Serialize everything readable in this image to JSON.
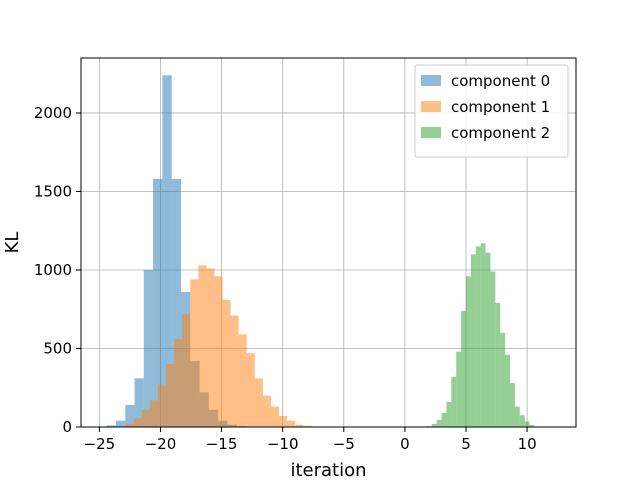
{
  "chart_data": {
    "type": "histogram",
    "xlabel": "iteration",
    "ylabel": "KL",
    "xlim": [
      -26.5,
      14.0
    ],
    "ylim": [
      0,
      2350
    ],
    "xticks": [
      -25,
      -20,
      -15,
      -10,
      -5,
      0,
      5,
      10
    ],
    "xtick_labels": [
      "−25",
      "−20",
      "−15",
      "−10",
      "−5",
      "0",
      "5",
      "10"
    ],
    "yticks": [
      0,
      500,
      1000,
      1500,
      2000
    ],
    "ytick_labels": [
      "0",
      "500",
      "1000",
      "1500",
      "2000"
    ],
    "grid": true,
    "legend_position": "top-right",
    "opacity": 0.5,
    "series": [
      {
        "name": "component 0",
        "color": "#1f77b4",
        "bin_edges": [
          -24.4,
          -23.64,
          -22.88,
          -22.12,
          -21.36,
          -20.6,
          -19.84,
          -19.08,
          -18.32,
          -17.56,
          -16.8,
          -16.04,
          -15.28,
          -14.52,
          -13.76,
          -13.0
        ],
        "counts": [
          10,
          40,
          140,
          310,
          1000,
          1580,
          2240,
          1580,
          860,
          420,
          220,
          110,
          40,
          15,
          5
        ]
      },
      {
        "name": "component 1",
        "color": "#ff7f0e",
        "bin_edges": [
          -23.5,
          -22.84,
          -22.18,
          -21.52,
          -20.86,
          -20.2,
          -19.54,
          -18.88,
          -18.22,
          -17.56,
          -16.9,
          -16.24,
          -15.58,
          -14.92,
          -14.26,
          -13.6,
          -12.94,
          -12.28,
          -11.62,
          -10.96,
          -10.3,
          -9.64,
          -8.98,
          -8.32,
          -7.66,
          -7.0
        ],
        "counts": [
          5,
          20,
          55,
          110,
          170,
          270,
          400,
          560,
          720,
          940,
          1030,
          1010,
          960,
          810,
          710,
          590,
          470,
          310,
          200,
          130,
          70,
          40,
          15,
          8,
          3
        ]
      },
      {
        "name": "component 2",
        "color": "#2ca02c",
        "bin_edges": [
          1.8,
          2.2,
          2.6,
          3.0,
          3.4,
          3.8,
          4.2,
          4.6,
          5.0,
          5.4,
          5.8,
          6.2,
          6.6,
          7.0,
          7.4,
          7.8,
          8.2,
          8.6,
          9.0,
          9.4,
          9.8,
          10.2,
          10.6,
          11.0
        ],
        "counts": [
          5,
          20,
          45,
          90,
          160,
          320,
          480,
          740,
          960,
          1100,
          1150,
          1170,
          1110,
          990,
          790,
          600,
          460,
          280,
          130,
          75,
          35,
          12,
          3
        ]
      }
    ]
  }
}
